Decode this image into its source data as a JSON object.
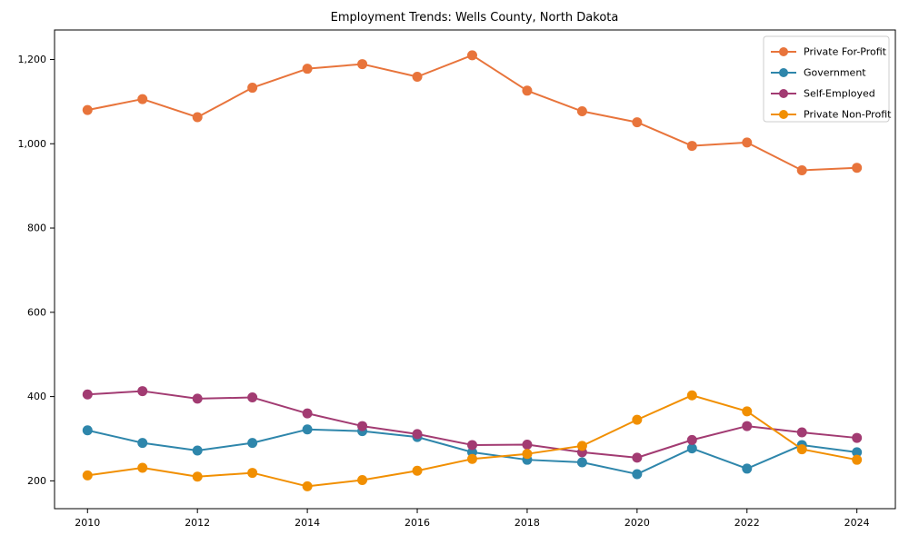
{
  "window": {
    "title": "Employment Trends: Wells County, North Dakota"
  },
  "chart_data": {
    "type": "line",
    "title": "Employment Trends: Wells County, North Dakota",
    "xlabel": "",
    "ylabel": "",
    "x": [
      2010,
      2011,
      2012,
      2013,
      2014,
      2015,
      2016,
      2017,
      2018,
      2019,
      2020,
      2021,
      2022,
      2023,
      2024
    ],
    "series": [
      {
        "name": "Private For-Profit",
        "color": "#E8743B",
        "values": [
          1080,
          1106,
          1063,
          1133,
          1178,
          1189,
          1159,
          1210,
          1126,
          1077,
          1051,
          995,
          1003,
          937,
          943
        ]
      },
      {
        "name": "Government",
        "color": "#2E86AB",
        "values": [
          320,
          290,
          272,
          290,
          322,
          318,
          304,
          268,
          250,
          244,
          216,
          277,
          229,
          285,
          268
        ]
      },
      {
        "name": "Self-Employed",
        "color": "#A23B72",
        "values": [
          405,
          413,
          395,
          398,
          360,
          330,
          311,
          285,
          286,
          268,
          255,
          297,
          330,
          315,
          302
        ]
      },
      {
        "name": "Private Non-Profit",
        "color": "#F18F01",
        "values": [
          213,
          231,
          210,
          219,
          187,
          202,
          224,
          252,
          264,
          283,
          345,
          403,
          365,
          275,
          250
        ]
      }
    ],
    "xticks": [
      2010,
      2012,
      2014,
      2016,
      2018,
      2020,
      2022,
      2024
    ],
    "xtick_labels": [
      "2010",
      "2012",
      "2014",
      "2016",
      "2018",
      "2020",
      "2022",
      "2024"
    ],
    "yticks": [
      200,
      400,
      600,
      800,
      1000,
      1200
    ],
    "ytick_labels": [
      "200",
      "400",
      "600",
      "800",
      "1,000",
      "1,200"
    ],
    "xlim": [
      2009.4,
      2024.7
    ],
    "ylim": [
      134,
      1270
    ],
    "grid": false,
    "legend_position": "upper right",
    "legend_entries": [
      "Private For-Profit",
      "Government",
      "Self-Employed",
      "Private Non-Profit"
    ],
    "axis_color": "#000000",
    "background_color": "#ffffff",
    "legend_border_color": "#cccccc"
  }
}
